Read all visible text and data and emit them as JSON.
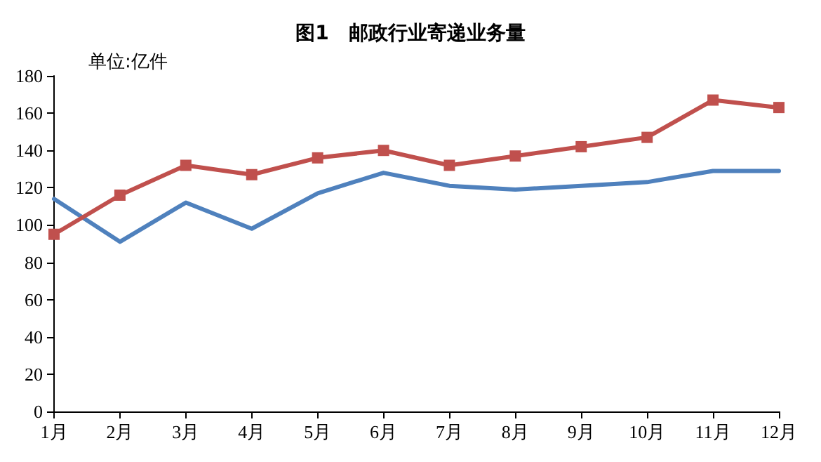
{
  "chart_data": {
    "type": "line",
    "title": "图1　邮政行业寄递业务量",
    "annotations": [
      "单位:亿件"
    ],
    "categories": [
      "1月",
      "2月",
      "3月",
      "4月",
      "5月",
      "6月",
      "7月",
      "8月",
      "9月",
      "10月",
      "11月",
      "12月"
    ],
    "series": [
      {
        "color": "#4f81bd",
        "marker": "none",
        "values": [
          114,
          91,
          112,
          98,
          117,
          128,
          121,
          119,
          121,
          123,
          129,
          129
        ]
      },
      {
        "color": "#c0504d",
        "marker": "square",
        "values": [
          95,
          116,
          132,
          127,
          136,
          140,
          132,
          137,
          142,
          147,
          167,
          163
        ]
      }
    ],
    "ylim": [
      0,
      180
    ],
    "yticks": [
      0,
      20,
      40,
      60,
      80,
      100,
      120,
      140,
      160,
      180
    ],
    "grid": false,
    "line_style": "solid"
  }
}
